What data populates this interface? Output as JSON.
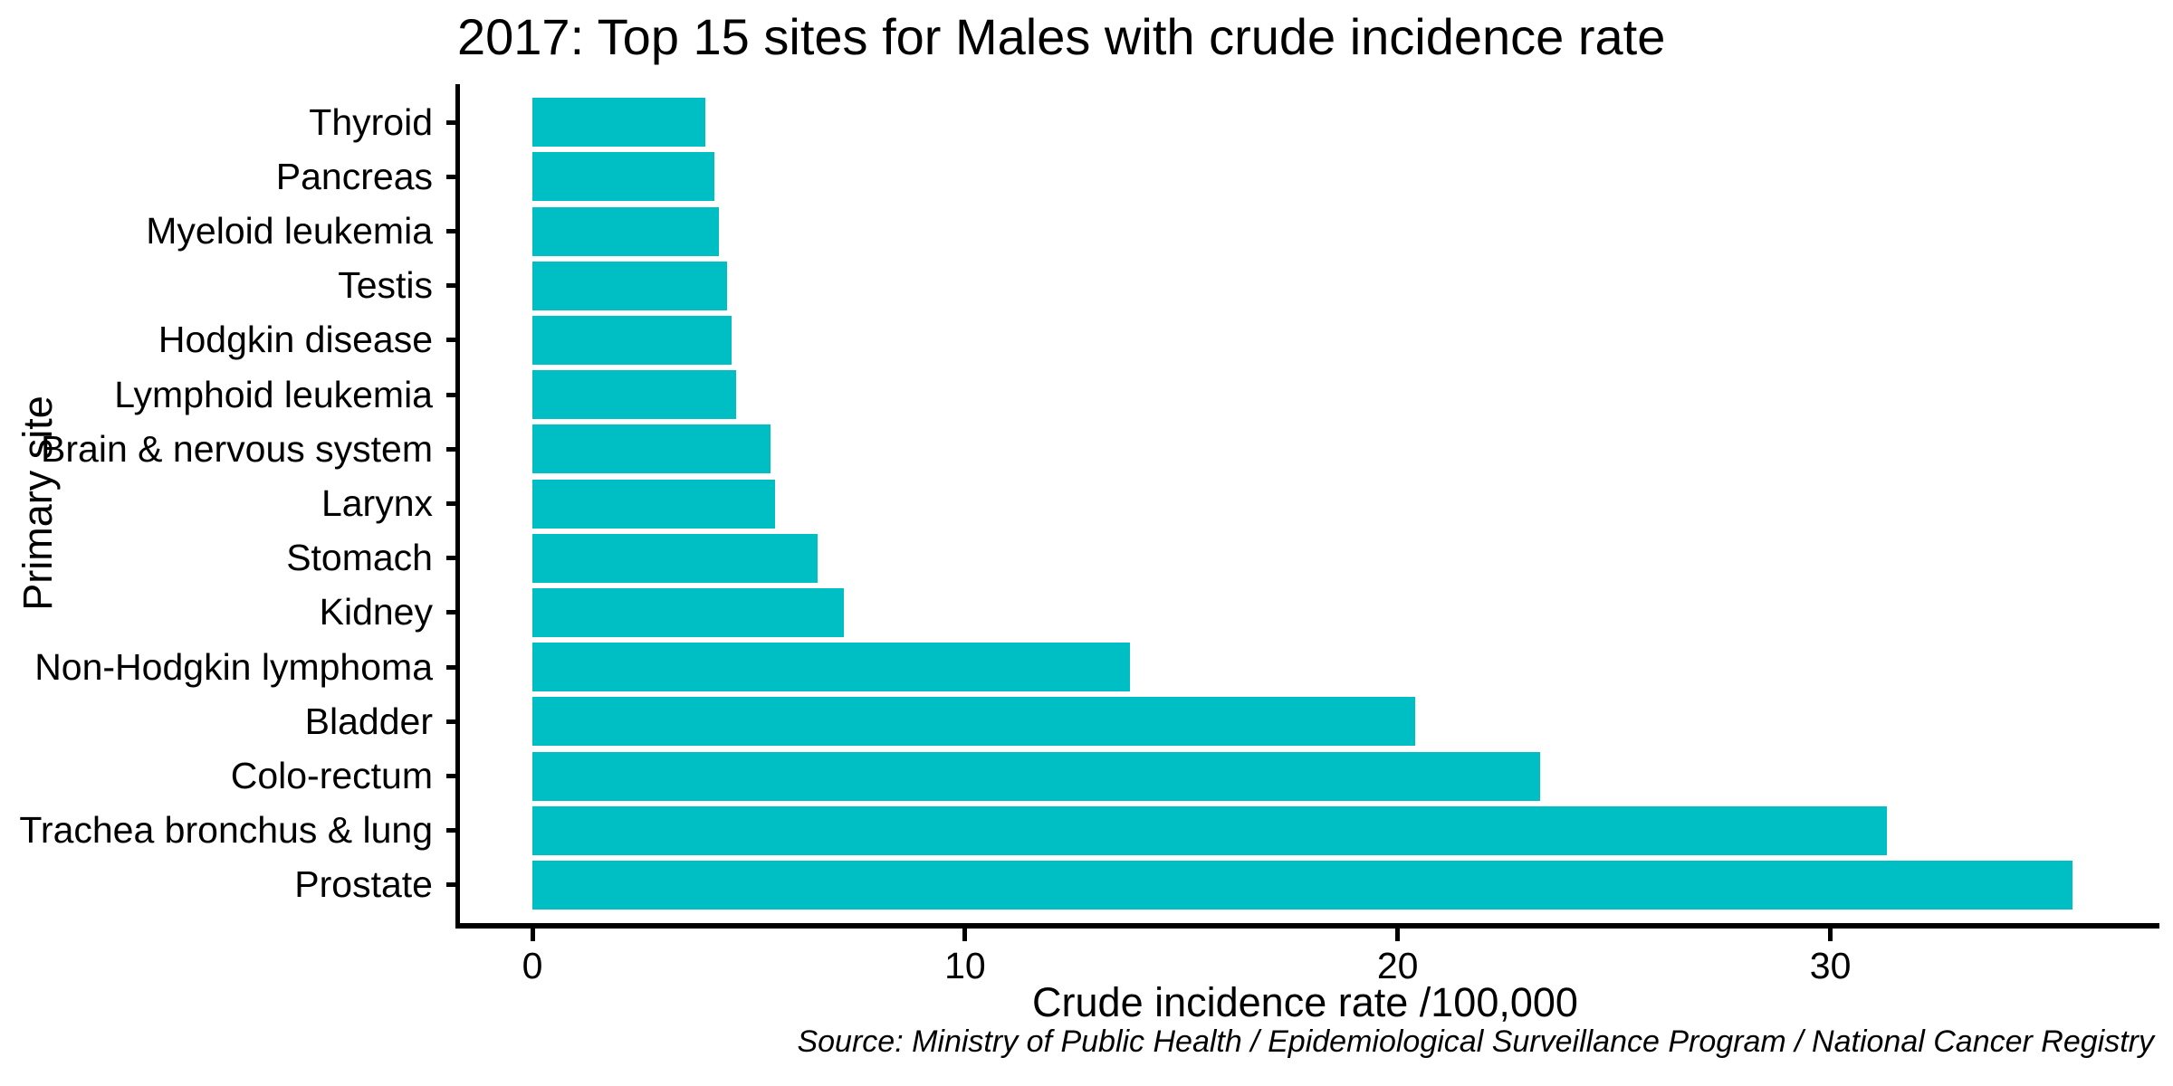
{
  "chart_data": {
    "type": "bar",
    "orientation": "horizontal",
    "title": "2017: Top 15 sites for Males with crude incidence rate",
    "xlabel": "Crude incidence rate /100,000",
    "ylabel": "Primary site",
    "caption": "Source: Ministry of Public Health / Epidemiological Surveillance Program / National Cancer Registry",
    "categories": [
      "Thyroid",
      "Pancreas",
      "Myeloid leukemia",
      "Testis",
      "Hodgkin disease",
      "Lymphoid leukemia",
      "Brain & nervous system",
      "Larynx",
      "Stomach",
      "Kidney",
      "Non-Hodgkin lymphoma",
      "Bladder",
      "Colo-rectum",
      "Trachea bronchus & lung",
      "Prostate"
    ],
    "values": [
      4.0,
      4.2,
      4.3,
      4.5,
      4.6,
      4.7,
      5.5,
      5.6,
      6.6,
      7.2,
      13.8,
      20.4,
      23.3,
      31.3,
      35.6
    ],
    "x_ticks": [
      0,
      10,
      20,
      30
    ],
    "xlim": [
      0,
      37.5
    ],
    "bar_color": "#00BFC4",
    "axis_color": "#000000",
    "background_color": "#FFFFFF",
    "grid": false,
    "legend": false
  }
}
